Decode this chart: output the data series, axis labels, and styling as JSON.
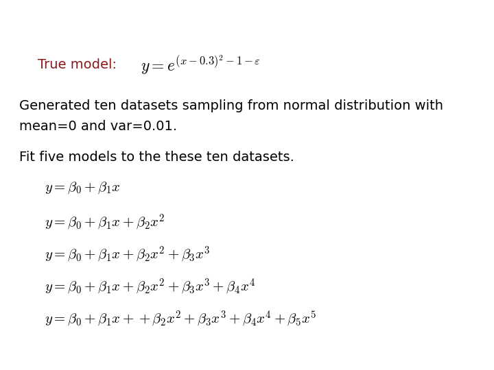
{
  "background_color": "#ffffff",
  "true_model_label": "True model:",
  "true_model_color": "#8B1A1A",
  "true_model_formula": "$y = e^{(x-0.3)^2-1-\\varepsilon}$",
  "generated_text_line1": "Generated ten datasets sampling from normal distribution with",
  "generated_text_line2": "mean=0 and var=0.01.",
  "fit_text": "Fit five models to the these ten datasets.",
  "formulas": [
    "$y = \\beta_0 + \\beta_1 x$",
    "$y = \\beta_0 + \\beta_1 x + \\beta_2 x^2$",
    "$y = \\beta_0 + \\beta_1 x + \\beta_2 x^2 + \\beta_3 x^3$",
    "$y = \\beta_0 + \\beta_1 x + \\beta_2 x^2 + \\beta_3 x^3 + \\beta_4 x^4$",
    "$y = \\beta_0 + \\beta_1 x + + \\beta_2 x^2 + \\beta_3 x^3 + \\beta_4 x^4 + \\beta_5 x^5$"
  ],
  "body_fontsize": 14,
  "formula_fontsize": 15,
  "true_formula_fontsize": 17,
  "label_fontsize": 14
}
